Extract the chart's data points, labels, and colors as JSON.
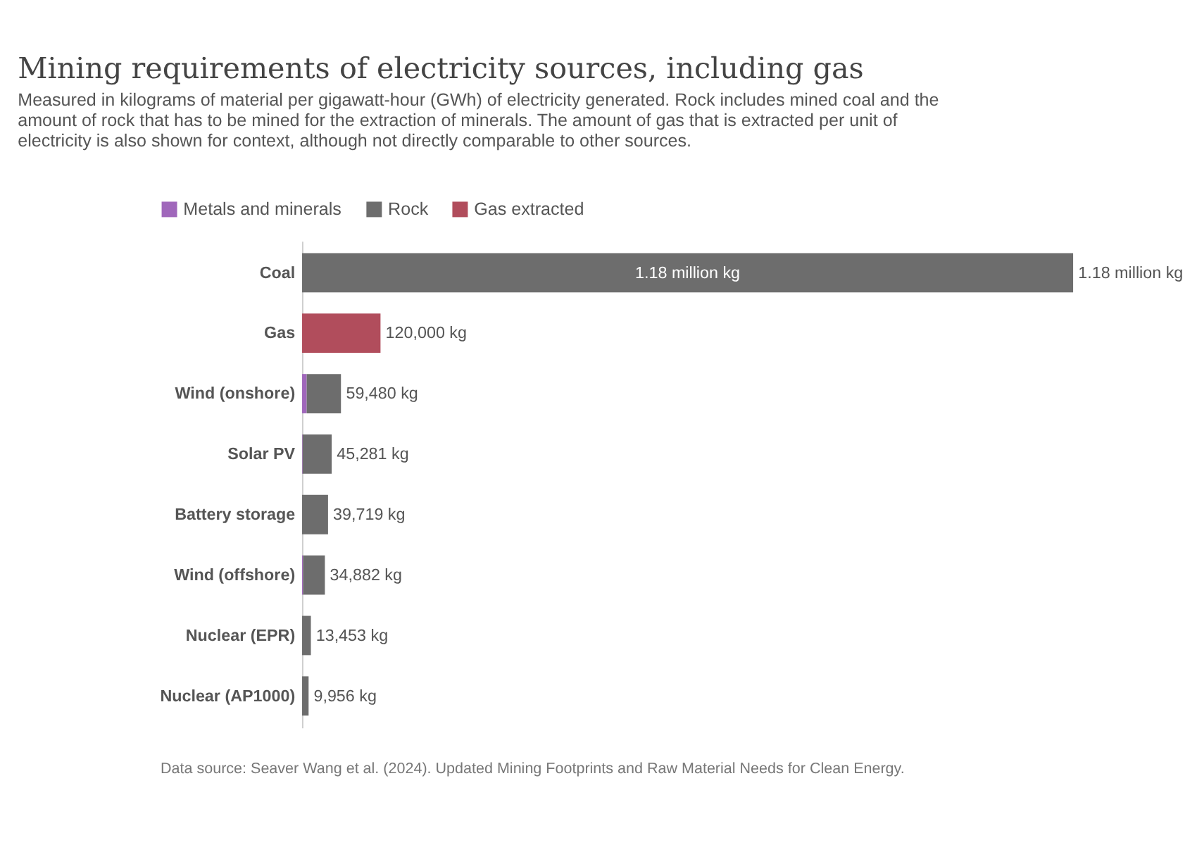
{
  "chart_data": {
    "type": "bar",
    "orientation": "horizontal",
    "stacked": true,
    "title": "Mining requirements of electricity sources, including gas",
    "subtitle": "Measured in kilograms of material per gigawatt-hour (GWh) of electricity generated. Rock includes mined coal and the amount of rock that has to be mined for the extraction of minerals. The amount of gas that is extracted per unit of electricity is also shown for context, although not directly comparable to other sources.",
    "categories": [
      "Coal",
      "Gas",
      "Wind (onshore)",
      "Solar PV",
      "Battery storage",
      "Wind (offshore)",
      "Nuclear (EPR)",
      "Nuclear (AP1000)"
    ],
    "series": [
      {
        "name": "Metals and minerals",
        "color": "#a067bb",
        "values": [
          null,
          null,
          7000,
          800,
          null,
          1500,
          null,
          null
        ]
      },
      {
        "name": "Rock",
        "color": "#6d6d6d",
        "values": [
          1180000,
          null,
          52480,
          44481,
          39719,
          33382,
          13453,
          9956
        ],
        "value_labels": [
          "1.18 million kg",
          null,
          null,
          null,
          null,
          null,
          null,
          null
        ]
      },
      {
        "name": "Gas extracted",
        "color": "#b14d5c",
        "values": [
          null,
          120000,
          null,
          null,
          null,
          null,
          null,
          null
        ]
      }
    ],
    "totals": [
      "1.18 million kg",
      "120,000 kg",
      "59,480 kg",
      "45,281 kg",
      "39,719 kg",
      "34,882 kg",
      "13,453 kg",
      "9,956 kg"
    ],
    "legend": "top left",
    "annotations": [
      "Data source: Seaver Wang et al. (2024). Updated Mining Footprints and Raw Material Needs for Clean Energy."
    ]
  }
}
